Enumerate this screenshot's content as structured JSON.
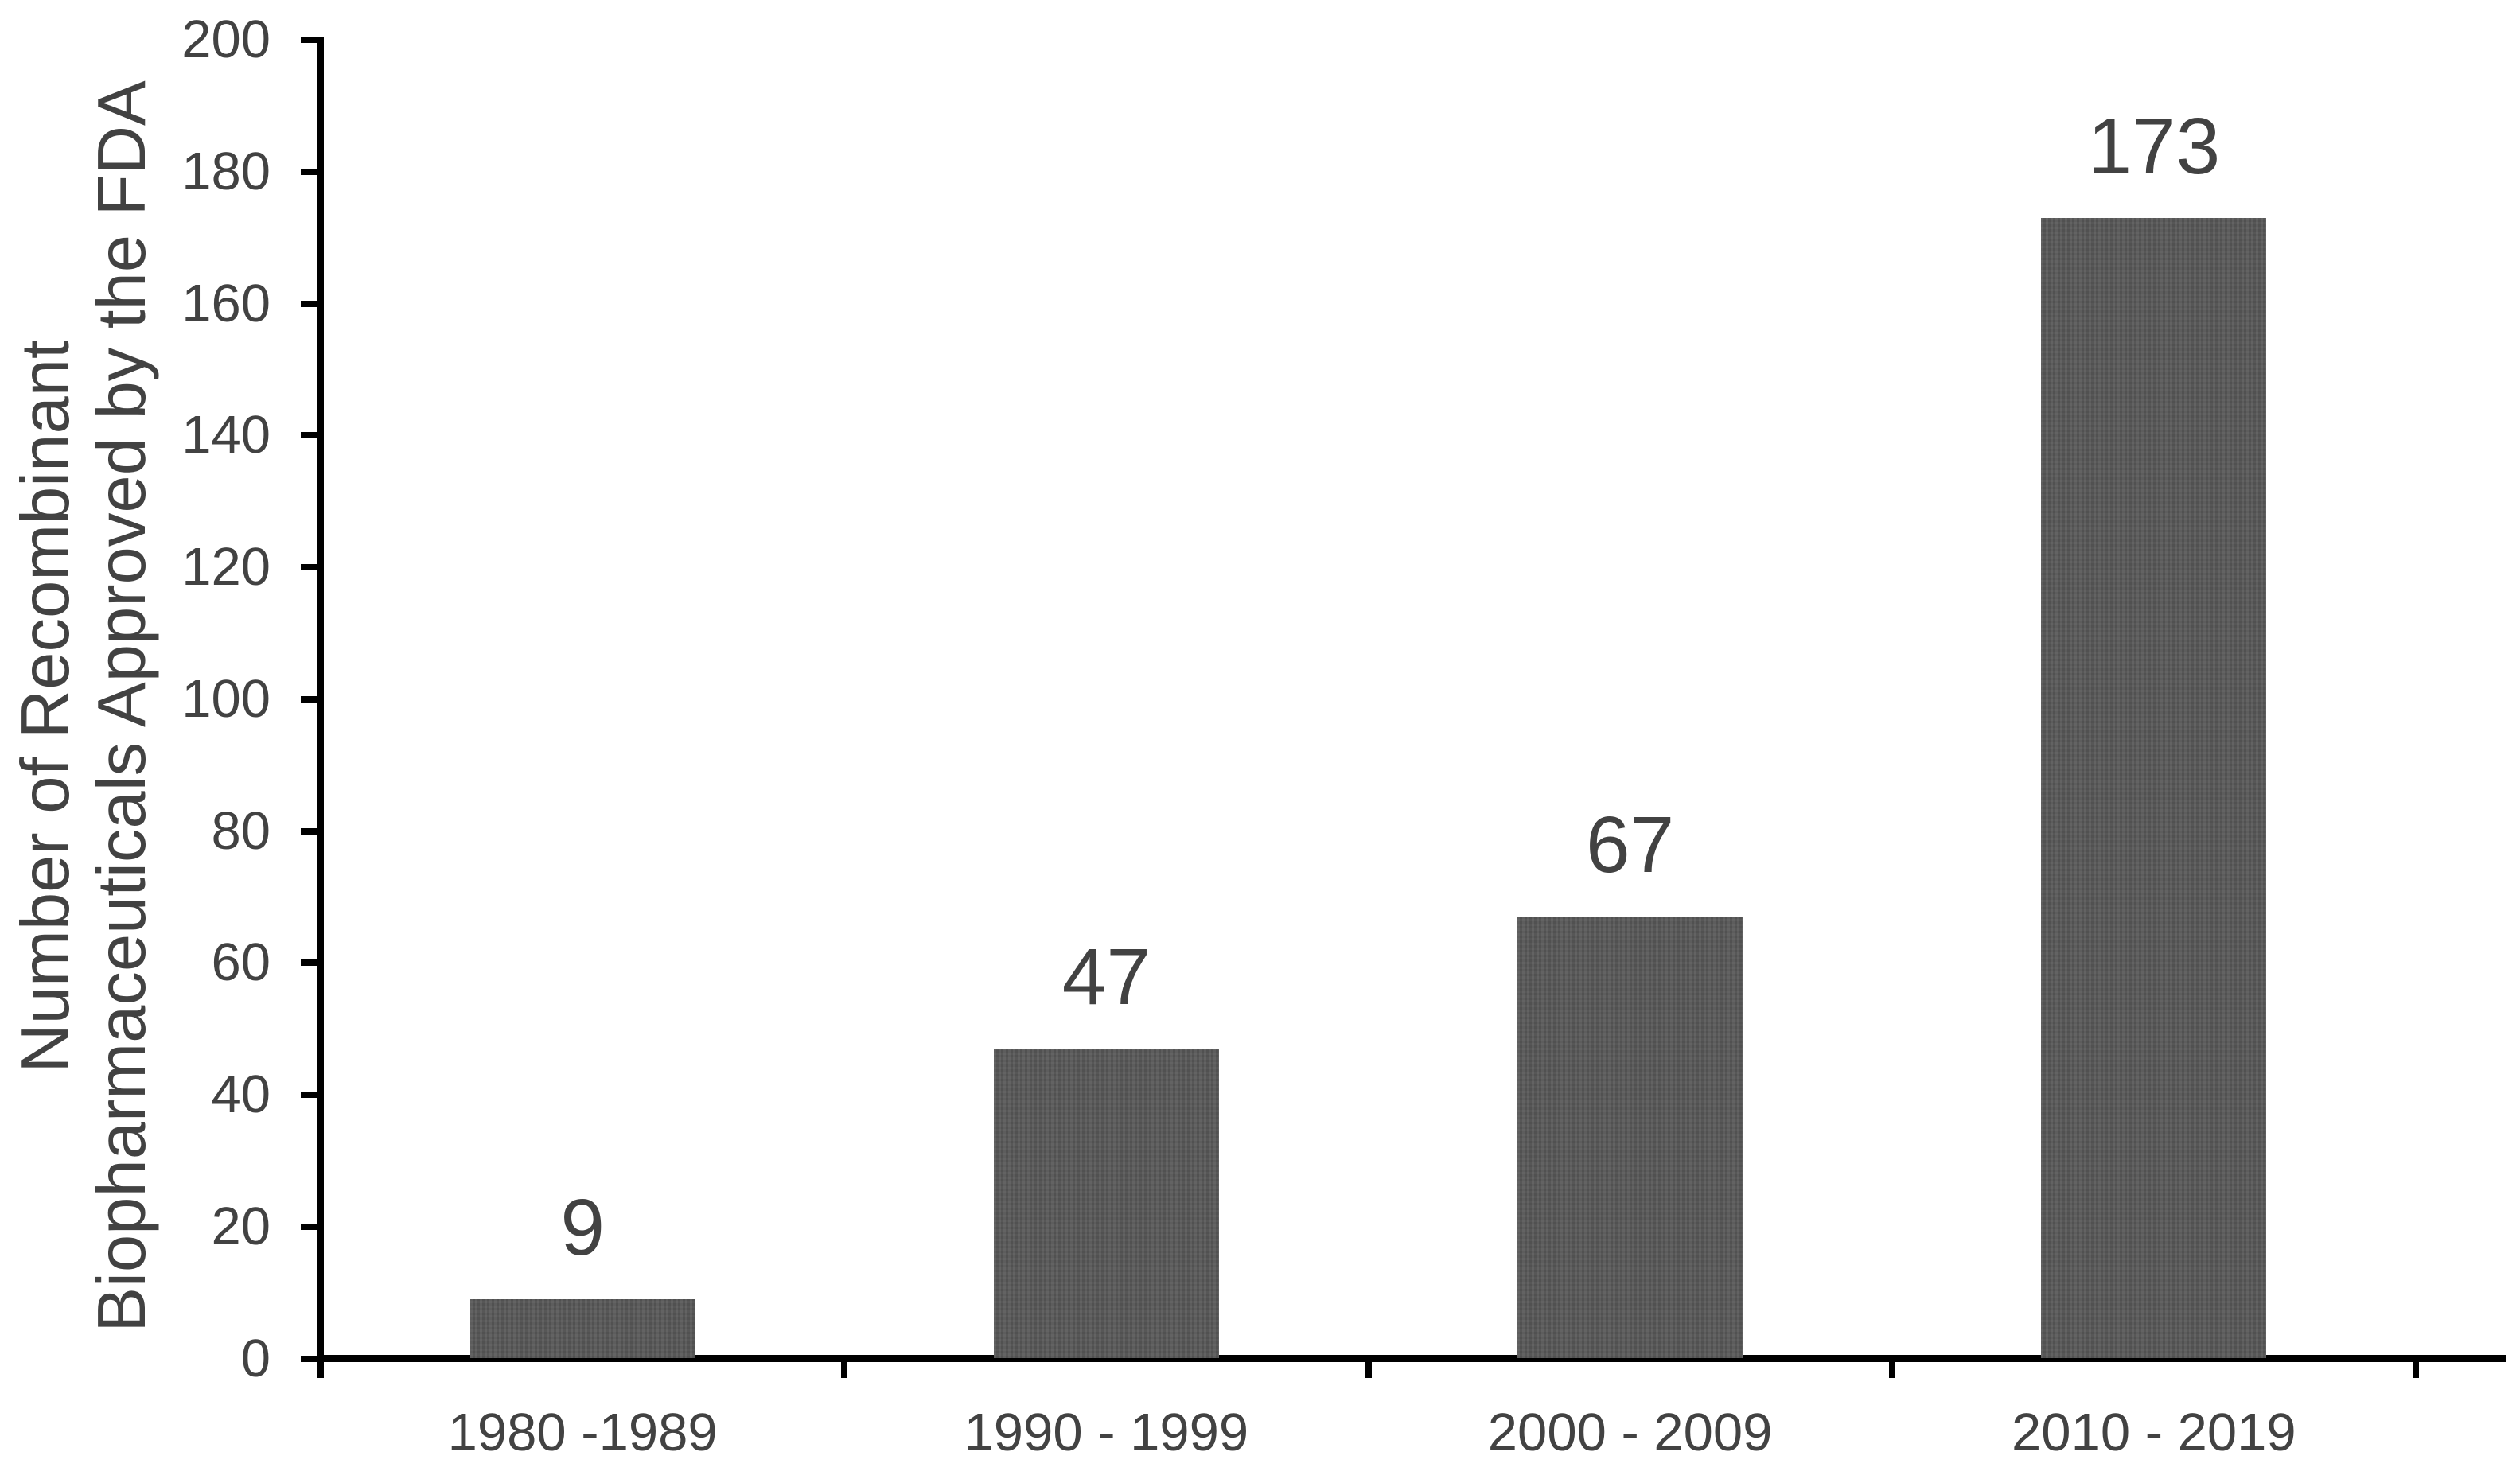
{
  "chart_data": {
    "type": "bar",
    "title": "",
    "categories": [
      "1980 -1989",
      "1990 - 1999",
      "2000 - 2009",
      "2010 - 2019"
    ],
    "values": [
      9,
      47,
      67,
      173
    ],
    "data_labels": [
      "9",
      "47",
      "67",
      "173"
    ],
    "ylabel_line1": "Number of Recombinant",
    "ylabel_line2": "Biopharmaceuticals Approved by the FDA",
    "xlabel": "",
    "y_ticks": [
      0,
      20,
      40,
      60,
      80,
      100,
      120,
      140,
      160,
      180,
      200
    ],
    "ylim": [
      0,
      200
    ],
    "grid": false,
    "legend": "none",
    "bar_color": "#575757",
    "axis_color": "#000000",
    "text_color": "#424242"
  }
}
